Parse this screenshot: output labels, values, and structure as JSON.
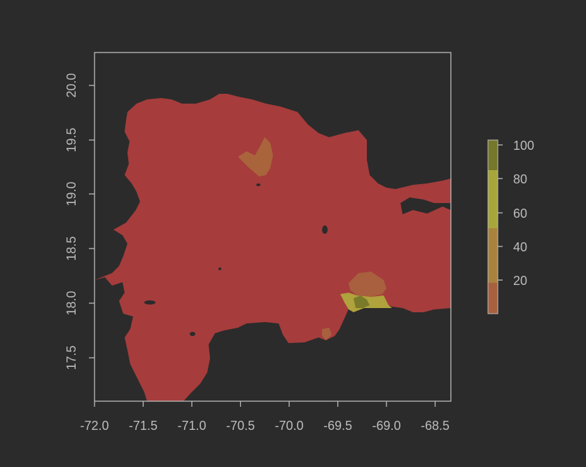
{
  "background_color": "#2b2b2b",
  "land_color": "#a63c3c",
  "map": {
    "xlim": [
      -72.0,
      -68.33
    ],
    "ylim": [
      17.1,
      20.3
    ],
    "x_ticks": [
      "-72.0",
      "-71.5",
      "-71.0",
      "-70.5",
      "-70.0",
      "-69.5",
      "-69.0",
      "-68.5"
    ],
    "y_ticks": [
      "17.5",
      "18.0",
      "18.5",
      "19.0",
      "19.5",
      "20.0"
    ],
    "hotspots": [
      {
        "lon": -70.3,
        "lat": 19.28,
        "value": 30,
        "color": "#a9643c"
      },
      {
        "lon": -69.22,
        "lat": 18.08,
        "value": 25,
        "color": "#a8603e"
      },
      {
        "lon": -69.2,
        "lat": 17.96,
        "value": 60,
        "color": "#b0a23c"
      },
      {
        "lon": -69.28,
        "lat": 17.97,
        "value": 90,
        "color": "#7a7a2a"
      },
      {
        "lon": -69.6,
        "lat": 17.72,
        "value": 25,
        "color": "#a8603e"
      }
    ]
  },
  "legend": {
    "range": [
      0,
      100
    ],
    "breaks": [
      0,
      20,
      50,
      82,
      100
    ],
    "colors": [
      "#a8603e",
      "#a9823e",
      "#a7a63a",
      "#75782a"
    ],
    "labels": [
      "100",
      "80",
      "60",
      "40",
      "20"
    ]
  }
}
